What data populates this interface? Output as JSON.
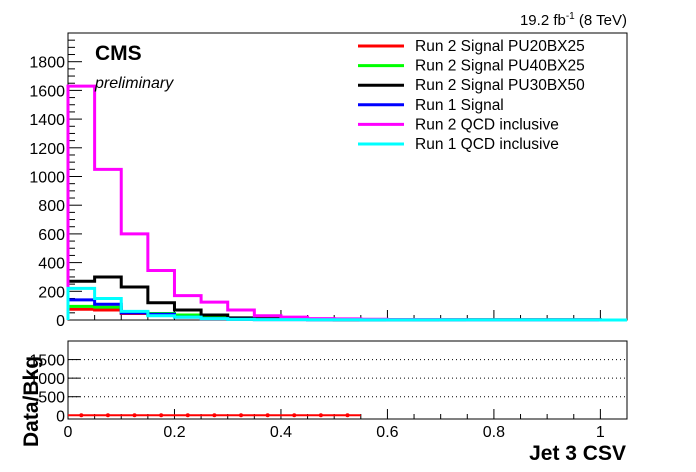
{
  "header": {
    "lumi_value": "19.2 fb",
    "lumi_exponent": "-1",
    "lumi_energy": " (8 TeV)"
  },
  "chart_data": [
    {
      "type": "line",
      "step_histogram": true,
      "title": "",
      "cms_label": "CMS",
      "cms_sublabel": "preliminary",
      "xlabel": "",
      "ylabel": "",
      "xlim": [
        0,
        1.05
      ],
      "ylim": [
        0,
        2000
      ],
      "y_ticks": [
        0,
        200,
        400,
        600,
        800,
        1000,
        1200,
        1400,
        1600,
        1800
      ],
      "bin_width": 0.05,
      "bin_edges": [
        0,
        0.05,
        0.1,
        0.15,
        0.2,
        0.25,
        0.3,
        0.35,
        0.4,
        0.45,
        0.5,
        0.55,
        0.6,
        0.65,
        0.7,
        0.75,
        0.8,
        0.85,
        0.9,
        0.95,
        1.0,
        1.05
      ],
      "legend_position": "top-right",
      "series": [
        {
          "name": "Run 2 Signal PU20BX25",
          "color": "#ff0000",
          "values": [
            75,
            70,
            45,
            35,
            25,
            15,
            5,
            5,
            4,
            3,
            2,
            2,
            1,
            1,
            1,
            1,
            1,
            1,
            1,
            1,
            0
          ]
        },
        {
          "name": "Run 2 Signal PU40BX25",
          "color": "#00ff00",
          "values": [
            95,
            90,
            55,
            45,
            35,
            20,
            8,
            6,
            5,
            4,
            3,
            2,
            1,
            1,
            1,
            1,
            1,
            1,
            1,
            1,
            0
          ]
        },
        {
          "name": "Run 2 Signal PU30BX50",
          "color": "#000000",
          "values": [
            270,
            300,
            230,
            120,
            70,
            35,
            15,
            10,
            8,
            5,
            3,
            2,
            2,
            1,
            1,
            1,
            1,
            1,
            1,
            1,
            0
          ]
        },
        {
          "name": "Run 1 Signal",
          "color": "#0000ff",
          "values": [
            140,
            110,
            50,
            40,
            20,
            10,
            5,
            3,
            3,
            2,
            2,
            1,
            1,
            1,
            1,
            1,
            1,
            1,
            1,
            1,
            0
          ]
        },
        {
          "name": "Run 2 QCD inclusive",
          "color": "#ff00ff",
          "values": [
            1630,
            1050,
            600,
            345,
            170,
            125,
            70,
            30,
            20,
            10,
            8,
            5,
            3,
            3,
            2,
            1,
            1,
            1,
            1,
            1,
            0
          ]
        },
        {
          "name": "Run 1 QCD inclusive",
          "color": "#00ffff",
          "values": [
            220,
            150,
            60,
            30,
            20,
            10,
            4,
            3,
            3,
            2,
            2,
            1,
            1,
            1,
            1,
            1,
            1,
            1,
            1,
            1,
            0
          ]
        }
      ]
    },
    {
      "type": "scatter",
      "title": "",
      "xlabel": "Jet 3 CSV",
      "ylabel": "Data/Bkg",
      "xlim": [
        0,
        1.05
      ],
      "ylim": [
        -100,
        2000
      ],
      "x_ticks": [
        0,
        0.2,
        0.4,
        0.6,
        0.8,
        1
      ],
      "x_tick_labels": [
        "0",
        "0.2",
        "0.4",
        "0.6",
        "0.8",
        "1"
      ],
      "y_ticks": [
        0,
        500,
        1000,
        1500
      ],
      "gridlines_y": [
        500,
        1000,
        1500
      ],
      "series": [
        {
          "name": "",
          "color": "#ff0000",
          "x": [
            0.025,
            0.075,
            0.125,
            0.175,
            0.225,
            0.275,
            0.325,
            0.375,
            0.425,
            0.475,
            0.525
          ],
          "y": [
            0,
            0,
            0,
            0,
            0,
            0,
            0,
            0,
            0,
            0,
            0
          ]
        }
      ]
    }
  ]
}
